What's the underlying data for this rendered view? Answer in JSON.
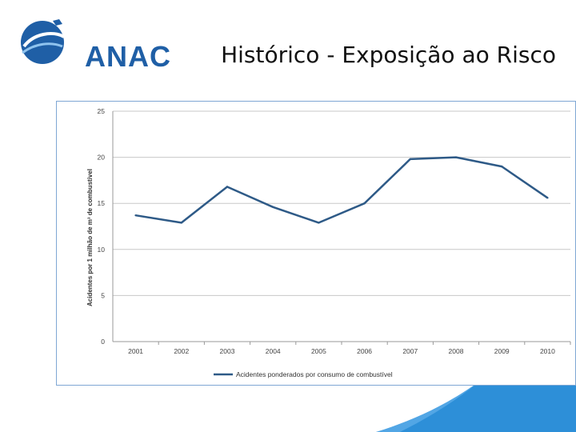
{
  "header": {
    "logo_text": "ANAC",
    "title": "Histórico - Exposição ao Risco"
  },
  "colors": {
    "brand_blue": "#1f5fa6",
    "series_line": "#2e5a87",
    "swoosh": "#2d8fd8"
  },
  "chart_data": {
    "type": "line",
    "title": "",
    "xlabel": "",
    "ylabel": "Acidentes por 1 milhão de m³ de combustível",
    "ylim": [
      0,
      25
    ],
    "yticks": [
      "0",
      "5",
      "10",
      "15",
      "20",
      "25"
    ],
    "categories": [
      "2001",
      "2002",
      "2003",
      "2004",
      "2005",
      "2006",
      "2007",
      "2008",
      "2009",
      "2010"
    ],
    "grid": true,
    "legend_position": "bottom",
    "series": [
      {
        "name": "Acidentes ponderados por consumo de combustível",
        "values": [
          13.7,
          12.9,
          16.8,
          14.6,
          12.9,
          15.0,
          19.8,
          20.0,
          19.0,
          15.6
        ]
      }
    ]
  }
}
